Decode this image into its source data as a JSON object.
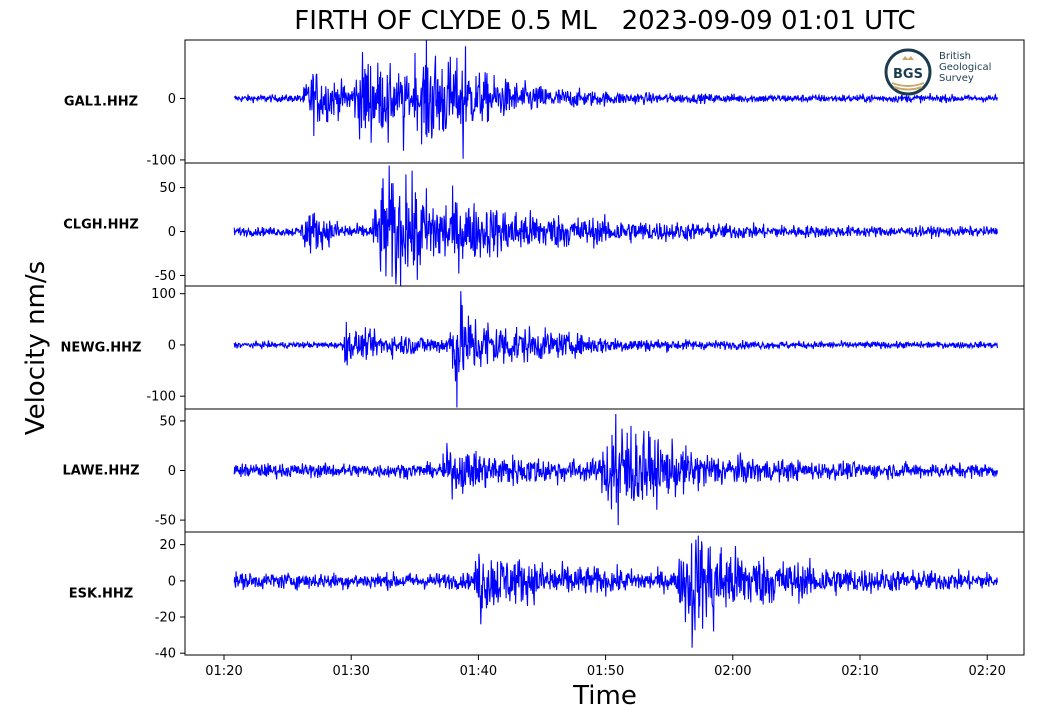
{
  "chart_data": {
    "type": "line",
    "title": "FIRTH OF CLYDE 0.5 ML   2023-09-09 01:01 UTC",
    "xlabel": "Time",
    "ylabel": "Velocity nm/s",
    "x_ticks": [
      "01:20",
      "01:30",
      "01:40",
      "01:50",
      "02:00",
      "02:10",
      "02:20"
    ],
    "x_range_minutes": [
      1.2,
      2.4
    ],
    "color": "#0000ff",
    "logo": {
      "name": "bgs-logo",
      "text": [
        "British",
        "Geological",
        "Survey"
      ],
      "mark": "BGS"
    },
    "panels": [
      {
        "station": "GAL1.HHZ",
        "ylim": [
          -105,
          95
        ],
        "yticks": [
          {
            "v": 0,
            "label": "0"
          },
          {
            "v": -100,
            "label": "-100"
          }
        ],
        "noise": 3,
        "events": [
          {
            "t": 27,
            "amp": 22,
            "rise": 1.0,
            "decay": 3.0
          },
          {
            "t": 31,
            "amp": 30,
            "rise": 1.0,
            "decay": 4.0
          },
          {
            "t": 36,
            "amp": 32,
            "rise": 1.0,
            "decay": 5.5
          }
        ],
        "spikes": [
          {
            "t": 38.8,
            "v": -98
          },
          {
            "t": 39.0,
            "v": 85
          },
          {
            "t": 34.1,
            "v": -85
          },
          {
            "t": 35.0,
            "v": 74
          },
          {
            "t": 32.9,
            "v": -72
          }
        ]
      },
      {
        "station": "CLGH.HHZ",
        "ylim": [
          -62,
          78
        ],
        "yticks": [
          {
            "v": 50,
            "label": "50"
          },
          {
            "v": 0,
            "label": "0"
          },
          {
            "v": -50,
            "label": "-50"
          }
        ],
        "noise": 2.5,
        "events": [
          {
            "t": 26.5,
            "amp": 12,
            "rise": 0.5,
            "decay": 2.0
          },
          {
            "t": 32.5,
            "amp": 28,
            "rise": 1.0,
            "decay": 10.0
          }
        ],
        "spikes": [
          {
            "t": 33.0,
            "v": 75
          },
          {
            "t": 33.5,
            "v": -60
          },
          {
            "t": 35.2,
            "v": -55
          },
          {
            "t": 34.3,
            "v": 65
          }
        ]
      },
      {
        "station": "NEWG.HHZ",
        "ylim": [
          -125,
          115
        ],
        "yticks": [
          {
            "v": 100,
            "label": "100"
          },
          {
            "v": 0,
            "label": "0"
          },
          {
            "v": -100,
            "label": "-100"
          }
        ],
        "noise": 3,
        "events": [
          {
            "t": 29.5,
            "amp": 12,
            "rise": 0.3,
            "decay": 9.0
          },
          {
            "t": 38.0,
            "amp": 30,
            "rise": 0.5,
            "decay": 6.0
          }
        ],
        "spikes": [
          {
            "t": 38.3,
            "v": -122
          },
          {
            "t": 38.6,
            "v": 105
          },
          {
            "t": 29.6,
            "v": 45
          },
          {
            "t": 29.7,
            "v": -40
          }
        ]
      },
      {
        "station": "LAWE.HHZ",
        "ylim": [
          -62,
          62
        ],
        "yticks": [
          {
            "v": 50,
            "label": "50"
          },
          {
            "v": 0,
            "label": "0"
          },
          {
            "v": -50,
            "label": "-50"
          }
        ],
        "noise": 3.5,
        "events": [
          {
            "t": 37.5,
            "amp": 8,
            "rise": 0.5,
            "decay": 8.0
          },
          {
            "t": 50.5,
            "amp": 22,
            "rise": 1.0,
            "decay": 5.0
          }
        ],
        "spikes": [
          {
            "t": 50.8,
            "v": 57
          },
          {
            "t": 51.0,
            "v": -55
          },
          {
            "t": 52.0,
            "v": 45
          },
          {
            "t": 53.0,
            "v": 40
          }
        ]
      },
      {
        "station": "ESK.HHZ",
        "ylim": [
          -41,
          27
        ],
        "yticks": [
          {
            "v": 20,
            "label": "20"
          },
          {
            "v": 0,
            "label": "0"
          },
          {
            "v": -20,
            "label": "-20"
          },
          {
            "v": -40,
            "label": "-40"
          }
        ],
        "noise": 2.2,
        "events": [
          {
            "t": 40.0,
            "amp": 7,
            "rise": 0.4,
            "decay": 6.0
          },
          {
            "t": 56.5,
            "amp": 12,
            "rise": 1.0,
            "decay": 6.0
          }
        ],
        "spikes": [
          {
            "t": 40.2,
            "v": -24
          },
          {
            "t": 56.8,
            "v": -37
          },
          {
            "t": 57.3,
            "v": 25
          },
          {
            "t": 58.5,
            "v": -28
          }
        ]
      }
    ]
  }
}
